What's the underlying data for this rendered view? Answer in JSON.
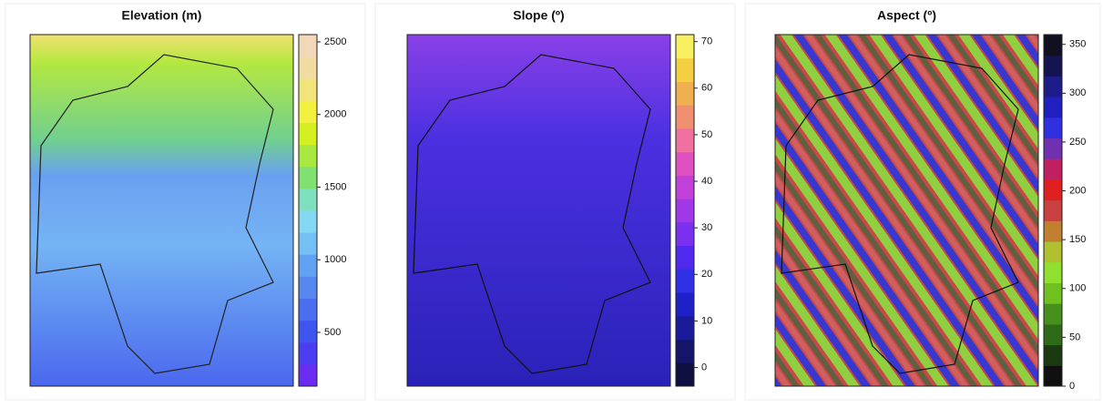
{
  "chart_data": [
    {
      "type": "raster",
      "title": "Elevation (m)",
      "colorbar_lim": [
        130,
        2550
      ],
      "colorbar_ticks": [
        500,
        1000,
        1500,
        2000,
        2500
      ],
      "colorbar_colors": [
        "#6a2cf0",
        "#4b3df2",
        "#3f55f0",
        "#4a6ef0",
        "#5688f0",
        "#62a2f2",
        "#74c0f4",
        "#85d8f2",
        "#7fe0c0",
        "#80e070",
        "#a8e840",
        "#d4f020",
        "#f4f040",
        "#f2e47a",
        "#f0dca0",
        "#f2d8b8"
      ]
    },
    {
      "type": "raster",
      "title": "Slope (º)",
      "colorbar_lim": [
        -4,
        71.5
      ],
      "colorbar_ticks": [
        0,
        10,
        20,
        30,
        40,
        50,
        60,
        70
      ],
      "colorbar_colors": [
        "#101040",
        "#14146a",
        "#1a1a9a",
        "#2020c8",
        "#3030e6",
        "#5028ee",
        "#7a30ee",
        "#a038e8",
        "#c040d8",
        "#e050c0",
        "#f070a0",
        "#f09070",
        "#f0b050",
        "#f4d040",
        "#f8f060"
      ]
    },
    {
      "type": "raster",
      "title": "Aspect (º)",
      "colorbar_lim": [
        0,
        360
      ],
      "colorbar_ticks": [
        0,
        50,
        100,
        150,
        200,
        250,
        300,
        350
      ],
      "colorbar_colors": [
        "#101010",
        "#1c3a10",
        "#2e6a18",
        "#48901e",
        "#70c020",
        "#90e030",
        "#b0c030",
        "#c08030",
        "#c84040",
        "#e02020",
        "#c02060",
        "#7030b0",
        "#3030e0",
        "#2020c0",
        "#1c1c8a",
        "#141450",
        "#101020"
      ]
    }
  ]
}
